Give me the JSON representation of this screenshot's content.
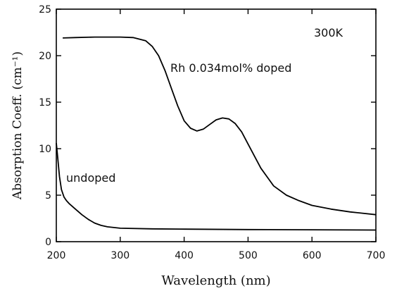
{
  "chart_data": {
    "type": "line",
    "title": "",
    "xlabel": "Wavelength (nm)",
    "ylabel": "Absorption Coeff. (cm⁻¹)",
    "xlim": [
      200,
      700
    ],
    "ylim": [
      0,
      25
    ],
    "xticks": [
      200,
      300,
      400,
      500,
      600,
      700
    ],
    "yticks": [
      0,
      5,
      10,
      15,
      20,
      25
    ],
    "grid": false,
    "annotations": [
      "300K"
    ],
    "series": [
      {
        "name": "Rh 0.034mol% doped",
        "color": "#000000",
        "x": [
          210,
          230,
          260,
          300,
          320,
          340,
          350,
          360,
          370,
          380,
          390,
          400,
          410,
          420,
          430,
          440,
          450,
          460,
          470,
          480,
          490,
          500,
          520,
          540,
          560,
          580,
          600,
          630,
          660,
          700
        ],
        "y": [
          21.9,
          21.95,
          22.0,
          22.0,
          21.95,
          21.6,
          21.0,
          20.0,
          18.4,
          16.5,
          14.6,
          13.0,
          12.2,
          11.9,
          12.1,
          12.6,
          13.1,
          13.3,
          13.2,
          12.7,
          11.8,
          10.5,
          7.9,
          6.0,
          5.0,
          4.4,
          3.9,
          3.5,
          3.2,
          2.9
        ]
      },
      {
        "name": "undoped",
        "color": "#000000",
        "x": [
          200,
          202,
          205,
          208,
          212,
          216,
          220,
          230,
          240,
          250,
          260,
          270,
          280,
          300,
          350,
          400,
          500,
          600,
          700
        ],
        "y": [
          10.6,
          9.2,
          7.0,
          5.6,
          4.8,
          4.4,
          4.1,
          3.5,
          2.9,
          2.4,
          2.0,
          1.75,
          1.6,
          1.45,
          1.38,
          1.35,
          1.3,
          1.28,
          1.25
        ]
      }
    ]
  }
}
